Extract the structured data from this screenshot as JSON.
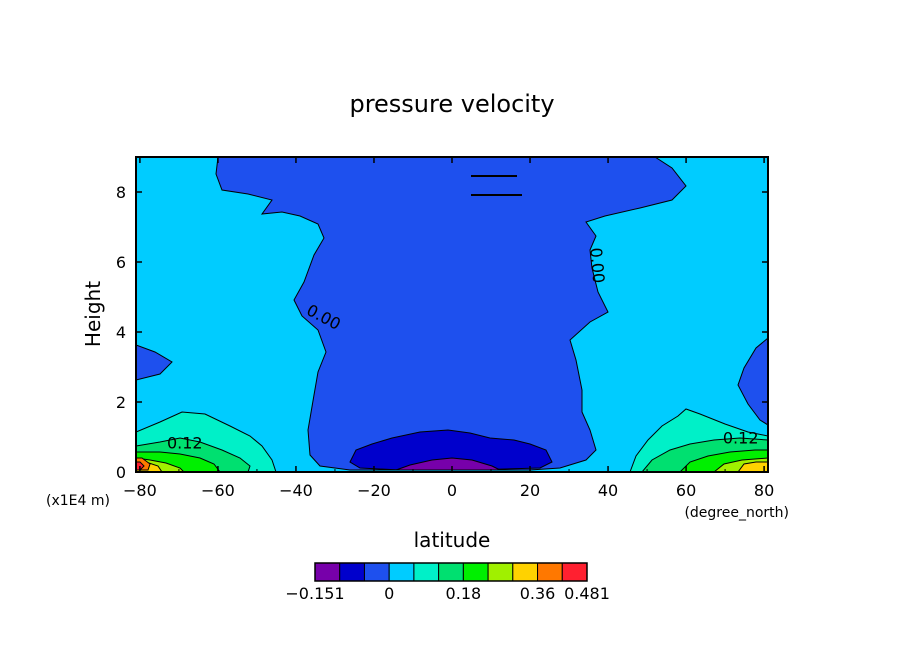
{
  "chart_data": {
    "type": "contour",
    "title": "pressure velocity",
    "xlabel": "latitude",
    "xunits": "(degree_north)",
    "ylabel": "Height",
    "yunits": "(x1E4 m)",
    "xlim": [
      -81,
      81
    ],
    "ylim": [
      0,
      9
    ],
    "x_ticks": [
      -80,
      -60,
      -40,
      -20,
      0,
      20,
      40,
      60,
      80
    ],
    "x_tick_labels": [
      "−80",
      "−60",
      "−40",
      "−20",
      "0",
      "20",
      "40",
      "60",
      "80"
    ],
    "y_ticks": [
      0,
      2,
      4,
      6,
      8
    ],
    "y_tick_labels": [
      "0",
      "2",
      "4",
      "6",
      "8"
    ],
    "contour_labels": [
      {
        "text": "0.00",
        "x": -33,
        "y": 4.4,
        "angle": 28
      },
      {
        "text": "0.00",
        "x": 37,
        "y": 5.9,
        "angle": 85
      },
      {
        "text": "0.12",
        "x": -68.5,
        "y": 0.8,
        "angle": 0
      },
      {
        "text": "0.12",
        "x": 74,
        "y": 0.95,
        "angle": 0
      }
    ],
    "levels": [
      -0.151,
      -0.09,
      -0.03,
      0.0,
      0.06,
      0.12,
      0.18,
      0.24,
      0.3,
      0.36,
      0.42,
      0.481
    ],
    "colorbar": {
      "colors": [
        "#7700aa",
        "#0000cc",
        "#1e50ee",
        "#00ccff",
        "#00f0c8",
        "#00e070",
        "#00f000",
        "#a0f000",
        "#ffd200",
        "#ff7800",
        "#ff2030"
      ],
      "tick_values": [
        -0.151,
        0,
        0.18,
        0.36,
        0.481
      ],
      "tick_labels": [
        "−0.151",
        "0",
        "0.18",
        "0.36",
        "0.481"
      ]
    },
    "regions": {
      "background": "#00ccff",
      "negative_core": "#1e50ee",
      "strong_negative": "#0000cc",
      "minimum": "#7700aa"
    }
  }
}
